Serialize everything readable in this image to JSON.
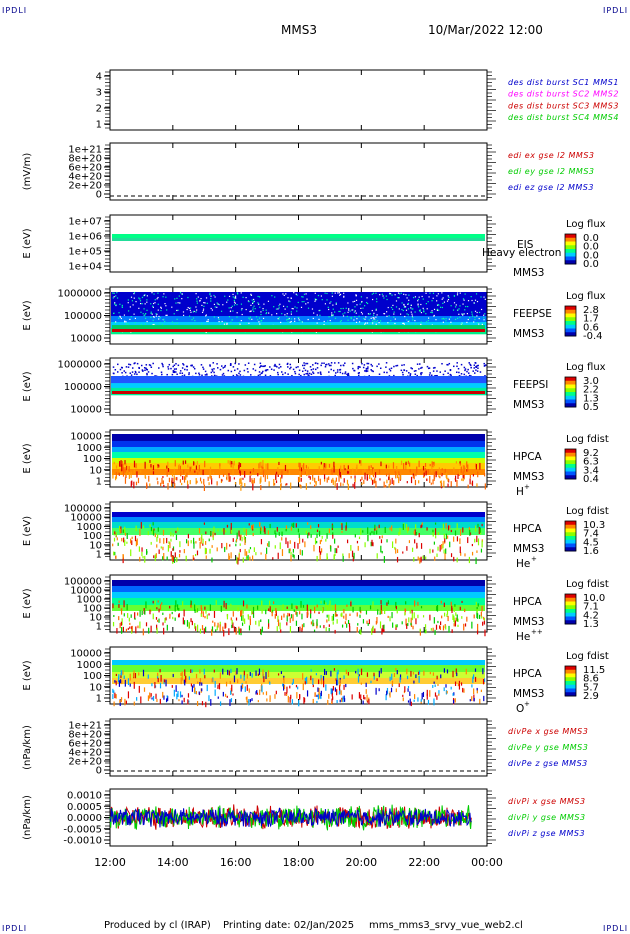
{
  "corner_label": "IPDLI",
  "header": {
    "title": "MMS3",
    "datetime": "10/Mar/2022 12:00"
  },
  "footer": {
    "produced": "Produced by cl (IRAP)",
    "printing": "Printing date: 02/Jan/2025",
    "file": "mms_mms3_srvy_vue_web2.cl"
  },
  "x_ticks": [
    "12:00",
    "14:00",
    "16:00",
    "18:00",
    "20:00",
    "22:00",
    "00:00"
  ],
  "colors": {
    "blue": "#0000cc",
    "magenta": "#ff00ff",
    "red": "#cc0000",
    "green": "#00cc00",
    "colorbar": [
      "#0000aa",
      "#0055ff",
      "#00ccff",
      "#00ff88",
      "#88ff00",
      "#ffff00",
      "#ff8800",
      "#dd0000"
    ]
  },
  "chart_data": [
    {
      "type": "line",
      "title": "",
      "ylabel": "",
      "ylim": [
        0.5,
        4.5
      ],
      "ytick_labels": [
        "4",
        "3",
        "2",
        "1"
      ],
      "legend": [
        {
          "text": "des dist burst SC1 MMS1",
          "color": "#0000cc"
        },
        {
          "text": "des dist burst SC2 MMS2",
          "color": "#ff00ff"
        },
        {
          "text": "des dist burst SC3 MMS3",
          "color": "#cc0000"
        },
        {
          "text": "des dist burst SC4 MMS4",
          "color": "#00cc00"
        }
      ],
      "series": []
    },
    {
      "type": "line",
      "ylabel": "(mV/m)",
      "ylim": [
        -5e+19,
        1.05e+21
      ],
      "ytick_labels": [
        "1e+21",
        "8e+20",
        "6e+20",
        "4e+20",
        "2e+20",
        "0"
      ],
      "zero_line": "dashed",
      "legend": [
        {
          "text": "edi ex gse l2 MMS3",
          "color": "#cc0000"
        },
        {
          "text": "edi ey gse l2 MMS3",
          "color": "#00cc00"
        },
        {
          "text": "edi ez gse l2 MMS3",
          "color": "#0000cc"
        }
      ],
      "series": []
    },
    {
      "type": "heatmap",
      "ylabel": "E (eV)",
      "ytick_labels": [
        "1e+07",
        "1e+06",
        "1e+05",
        "1e+04"
      ],
      "labels": [
        "EIS",
        "MMS3"
      ],
      "overlap_text": "Heavy electron to",
      "colorbar": {
        "title": "Log flux",
        "ticks": [
          "0.0",
          "0.0",
          "0.0",
          "0.0"
        ]
      }
    },
    {
      "type": "heatmap",
      "ylabel": "E (eV)",
      "ytick_labels": [
        "1000000",
        "100000",
        "10000"
      ],
      "labels": [
        "FEEPSE",
        "MMS3"
      ],
      "colorbar": {
        "title": "Log flux",
        "ticks": [
          "2.8",
          "1.7",
          "0.6",
          "-0.4"
        ]
      }
    },
    {
      "type": "heatmap",
      "ylabel": "E (eV)",
      "ytick_labels": [
        "1000000",
        "100000",
        "10000"
      ],
      "labels": [
        "FEEPSI",
        "MMS3"
      ],
      "colorbar": {
        "title": "Log flux",
        "ticks": [
          "3.0",
          "2.2",
          "1.3",
          "0.5"
        ]
      }
    },
    {
      "type": "heatmap",
      "ylabel": "E (eV)",
      "ytick_labels": [
        "10000",
        "1000",
        "100",
        "10",
        "1"
      ],
      "labels": [
        "HPCA",
        "MMS3"
      ],
      "species": "H",
      "species_sup": "+",
      "colorbar": {
        "title": "Log fdist",
        "ticks": [
          "9.2",
          "6.3",
          "3.4",
          "0.4"
        ]
      }
    },
    {
      "type": "heatmap",
      "ylabel": "E (eV)",
      "ytick_labels": [
        "100000",
        "10000",
        "1000",
        "100",
        "10",
        "1"
      ],
      "labels": [
        "HPCA",
        "MMS3"
      ],
      "species": "He",
      "species_sup": "+",
      "colorbar": {
        "title": "Log fdist",
        "ticks": [
          "10.3",
          "7.4",
          "4.5",
          "1.6"
        ]
      }
    },
    {
      "type": "heatmap",
      "ylabel": "E (eV)",
      "ytick_labels": [
        "100000",
        "10000",
        "1000",
        "100",
        "10",
        "1"
      ],
      "labels": [
        "HPCA",
        "MMS3"
      ],
      "species": "He",
      "species_sup": "++",
      "colorbar": {
        "title": "Log fdist",
        "ticks": [
          "10.0",
          "7.1",
          "4.2",
          "1.3"
        ]
      }
    },
    {
      "type": "heatmap",
      "ylabel": "E (eV)",
      "ytick_labels": [
        "10000",
        "1000",
        "100",
        "10",
        "1"
      ],
      "labels": [
        "HPCA",
        "MMS3"
      ],
      "species": "O",
      "species_sup": "+",
      "colorbar": {
        "title": "Log fdist",
        "ticks": [
          "11.5",
          "8.6",
          "5.7",
          "2.9"
        ]
      }
    },
    {
      "type": "line",
      "ylabel": "(nPa/km)",
      "ylim": [
        -5e+19,
        1.05e+21
      ],
      "ytick_labels": [
        "1e+21",
        "8e+20",
        "6e+20",
        "4e+20",
        "2e+20",
        "0"
      ],
      "zero_line": "dashed",
      "legend": [
        {
          "text": "divPe x gse MMS3",
          "color": "#cc0000"
        },
        {
          "text": "divPe y gse MMS3",
          "color": "#00cc00"
        },
        {
          "text": "divPe z gse MMS3",
          "color": "#0000cc"
        }
      ],
      "series": []
    },
    {
      "type": "line",
      "ylabel": "(nPa/km)",
      "ylim": [
        -0.0013,
        0.0013
      ],
      "ytick_labels": [
        "0.0010",
        "0.0005",
        "0.0000",
        "-0.0005",
        "-0.0010"
      ],
      "x_range_hours": [
        12,
        23.5
      ],
      "legend": [
        {
          "text": "divPi x gse MMS3",
          "color": "#cc0000"
        },
        {
          "text": "divPi y gse MMS3",
          "color": "#00cc00"
        },
        {
          "text": "divPi z gse MMS3",
          "color": "#0000cc"
        }
      ],
      "series": [
        {
          "name": "divPi x gse MMS3",
          "approx_amplitude": 0.0005
        },
        {
          "name": "divPi y gse MMS3",
          "approx_amplitude": 0.0005
        },
        {
          "name": "divPi z gse MMS3",
          "approx_amplitude": 0.0004
        }
      ]
    }
  ]
}
